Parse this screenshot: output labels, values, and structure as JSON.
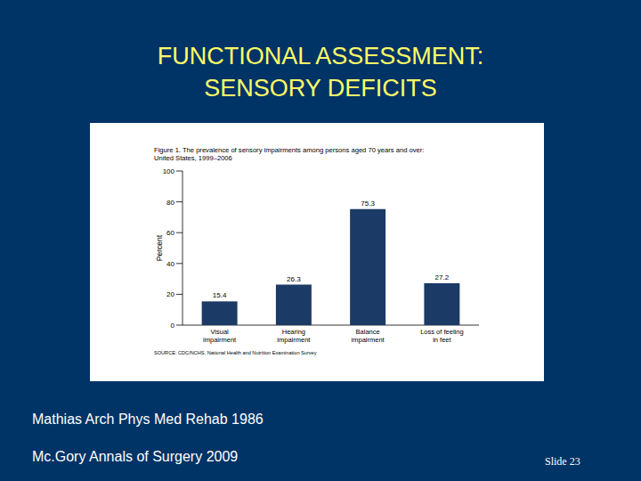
{
  "slide": {
    "title": [
      "FUNCTIONAL ASSESSMENT:",
      "SENSORY DEFICITS"
    ],
    "references": [
      "Mathias Arch Phys Med Rehab 1986",
      "Mc.Gory Annals of Surgery 2009"
    ],
    "slide_number": "Slide 23"
  },
  "chart_data": {
    "type": "bar",
    "title": "Figure 1. The prevalence of sensory impairments among persons aged 70 years and over: United States, 1999–2006",
    "y_label": "Percent",
    "source": "SOURCE: CDC/NCHS, National Health and Nutrition Examination Survey",
    "categories": [
      "Visual impairment",
      "Hearing impairment",
      "Balance impairment",
      "Loss of feeling in feet"
    ],
    "values": [
      15.4,
      26.3,
      75.3,
      27.2
    ],
    "color": "#1b3a66",
    "ylim": [
      0,
      100
    ],
    "yticks": [
      0,
      20,
      40,
      60,
      80,
      100
    ],
    "grid": false,
    "data_labels": true
  }
}
